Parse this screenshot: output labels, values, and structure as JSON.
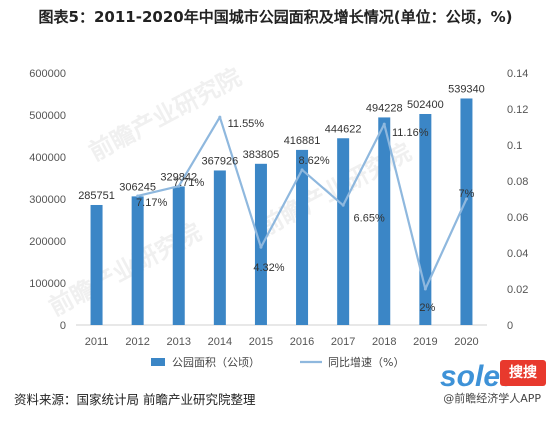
{
  "title": "图表5：2011-2020年中国城市公园面积及增长情况(单位：公顷，%)",
  "source": "资料来源：国家统计局 前瞻产业研究院整理",
  "brand": "@前瞻经济学人APP",
  "watermark": "前瞻产业研究院",
  "logo_text": "soled",
  "logo_badge": "搜搜",
  "colors": {
    "bar": "#3b86c6",
    "line": "#8fb8de"
  },
  "chart_data": {
    "type": "bar",
    "categories": [
      "2011",
      "2012",
      "2013",
      "2014",
      "2015",
      "2016",
      "2017",
      "2018",
      "2019",
      "2020"
    ],
    "series": [
      {
        "name": "公园面积（公顷）",
        "type": "bar",
        "axis": "left",
        "values": [
          285751,
          306245,
          329842,
          367926,
          383805,
          416881,
          444622,
          494228,
          502400,
          539340
        ]
      },
      {
        "name": "同比增速（%）",
        "type": "line",
        "axis": "right",
        "values": [
          null,
          0.0717,
          0.0771,
          0.1155,
          0.0432,
          0.0862,
          0.0665,
          0.1116,
          0.02,
          0.07
        ],
        "labels": [
          "",
          "7.17%",
          "7.71%",
          "11.55%",
          "4.32%",
          "8.62%",
          "6.65%",
          "11.16%",
          "2%",
          "7%"
        ]
      }
    ],
    "ylim_left": [
      0,
      600000
    ],
    "yticks_left": [
      "0",
      "100000",
      "200000",
      "300000",
      "400000",
      "500000",
      "600000"
    ],
    "ylim_right": [
      0,
      0.14
    ],
    "yticks_right": [
      "0",
      "0.02",
      "0.04",
      "0.06",
      "0.08",
      "0.1",
      "0.12",
      "0.14"
    ],
    "legend": "bottom",
    "grid": false
  }
}
